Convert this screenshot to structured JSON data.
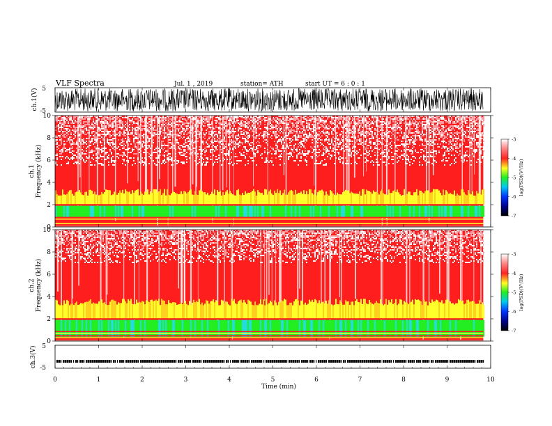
{
  "header": {
    "title": "VLF Spectra",
    "date": "Jul. 1 , 2019",
    "station": "station= ATH",
    "start": "start UT = 6 : 0 : 1"
  },
  "chart_data": [
    {
      "type": "line",
      "name": "ch1-waveform",
      "ylabel": "ch.1(V)",
      "yticks": [
        "5",
        "-5"
      ],
      "ylim": [
        -5,
        5
      ],
      "xlim": [
        0,
        10
      ],
      "data_end_min": 9.83,
      "description_range": [
        -5,
        5
      ]
    },
    {
      "type": "heatmap",
      "name": "ch1-spectrogram",
      "ylabel_line1": "ch.1",
      "ylabel_line2": "Frequency (kHz)",
      "yticks": [
        "0",
        "2",
        "4",
        "6",
        "8",
        "10"
      ],
      "ylim": [
        0,
        10
      ],
      "xlim": [
        0,
        10
      ],
      "colorbar": {
        "label": "log(PSD)(V²/Hz)",
        "ticks": [
          "-3",
          "-4",
          "-5",
          "-6",
          "-7"
        ],
        "range": [
          -7,
          -3
        ]
      },
      "green_band_khz": [
        0.9,
        2.0
      ],
      "yellow_band_khz": [
        2.0,
        3.4
      ]
    },
    {
      "type": "heatmap",
      "name": "ch2-spectrogram",
      "ylabel_line1": "ch.2",
      "ylabel_line2": "Frequency (kHz)",
      "yticks": [
        "0",
        "2",
        "4",
        "6",
        "8",
        "10"
      ],
      "ylim": [
        0,
        10
      ],
      "xlim": [
        0,
        10
      ],
      "colorbar": {
        "label": "log(PSD)(V²/Hz)",
        "ticks": [
          "-3",
          "-4",
          "-5",
          "-6",
          "-7"
        ],
        "range": [
          -7,
          -3
        ]
      },
      "green_band_khz": [
        0.4,
        2.0
      ],
      "yellow_band_khz": [
        2.0,
        3.8
      ]
    },
    {
      "type": "line",
      "name": "ch3-voltage",
      "ylabel": "ch.3(V)",
      "yticks": [
        "5",
        "-5"
      ],
      "ylim": [
        -5,
        5
      ],
      "xlim": [
        0,
        10
      ],
      "level": -2
    }
  ],
  "xaxis": {
    "label": "Time (min)",
    "ticks": [
      "0",
      "1",
      "2",
      "3",
      "4",
      "5",
      "6",
      "7",
      "8",
      "9",
      "10"
    ]
  },
  "colors": {
    "red": "#ff1e1e",
    "pink": "#ff9aa0",
    "yellow": "#ffff2a",
    "green": "#22ee22",
    "cyan": "#22dddd",
    "blue": "#0022ff",
    "navy": "#000055"
  }
}
